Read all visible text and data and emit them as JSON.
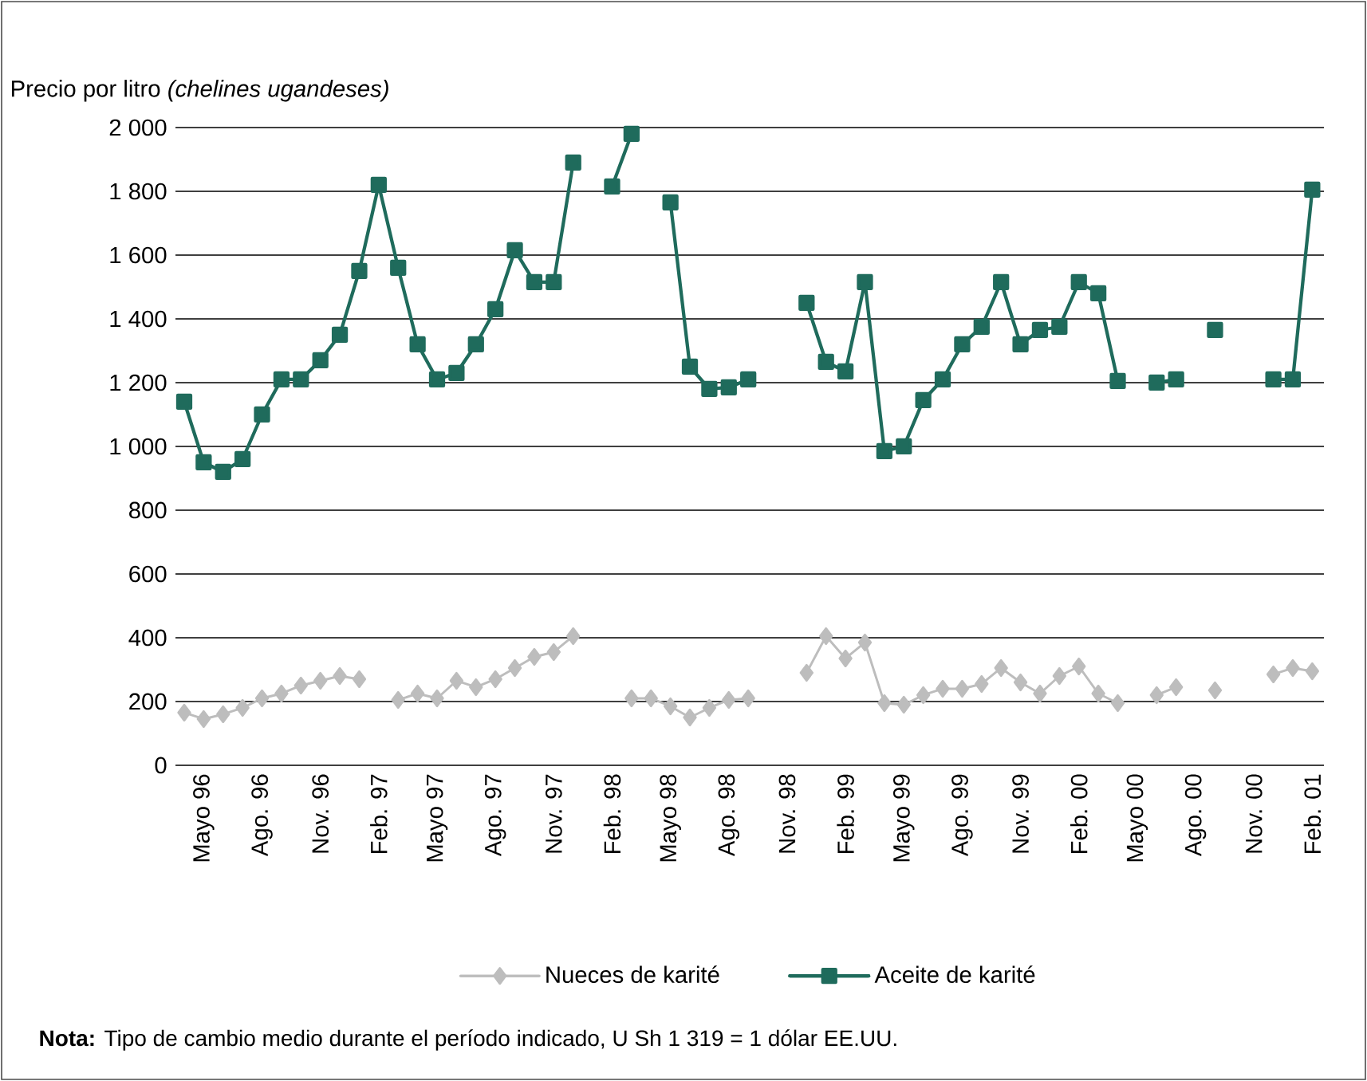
{
  "chart_data": {
    "type": "line",
    "ylabel": "Precio por litro *(chelines ugandeses)*",
    "categories": [
      null,
      "Mayo 96",
      null,
      null,
      "Ago. 96",
      null,
      null,
      "Nov. 96",
      null,
      null,
      "Feb. 97",
      null,
      null,
      "Mayo 97",
      null,
      null,
      "Ago. 97",
      null,
      null,
      "Nov. 97",
      null,
      null,
      "Feb. 98",
      null,
      null,
      "Mayo 98",
      null,
      null,
      "Ago. 98",
      null,
      null,
      "Nov. 98",
      null,
      null,
      "Feb. 99",
      null,
      null,
      "Mayo 99",
      null,
      null,
      "Ago. 99",
      null,
      null,
      "Nov. 99",
      null,
      null,
      "Feb. 00",
      null,
      null,
      "Mayo 00",
      null,
      null,
      "Ago. 00",
      null,
      null,
      "Nov. 00",
      null,
      null,
      "Feb. 01"
    ],
    "series": [
      {
        "name": "Nueces de karité",
        "color": "#bdbdbd",
        "marker": "diamond",
        "values": [
          165,
          145,
          160,
          180,
          210,
          225,
          250,
          265,
          280,
          270,
          null,
          205,
          225,
          210,
          265,
          245,
          270,
          305,
          340,
          355,
          405,
          null,
          null,
          210,
          210,
          185,
          150,
          180,
          205,
          210,
          null,
          null,
          290,
          405,
          335,
          385,
          195,
          190,
          220,
          240,
          240,
          255,
          305,
          260,
          225,
          280,
          310,
          225,
          195,
          null,
          220,
          245,
          null,
          235,
          null,
          null,
          285,
          305,
          295
        ]
      },
      {
        "name": "Aceite de karité",
        "color": "#1f6b5c",
        "marker": "square",
        "values": [
          1140,
          950,
          920,
          960,
          1100,
          1210,
          1210,
          1270,
          1350,
          1550,
          1820,
          1560,
          1320,
          1210,
          1230,
          1320,
          1430,
          1615,
          1515,
          1515,
          1890,
          null,
          1815,
          1980,
          null,
          1765,
          1250,
          1180,
          1185,
          1210,
          null,
          null,
          1450,
          1265,
          1235,
          1515,
          985,
          1000,
          1145,
          1210,
          1320,
          1375,
          1515,
          1320,
          1365,
          1375,
          1515,
          1480,
          1205,
          null,
          1200,
          1210,
          null,
          1365,
          null,
          null,
          1210,
          1210,
          1805
        ]
      }
    ],
    "ylim": [
      0,
      2000
    ],
    "yticks": [
      0,
      200,
      400,
      600,
      800,
      {
        "value": 1000,
        "label": "1 000"
      },
      {
        "value": 1200,
        "label": "1 200"
      },
      {
        "value": 1400,
        "label": "1 400"
      },
      {
        "value": 1600,
        "label": "1 600"
      },
      {
        "value": 1800,
        "label": "1 800"
      },
      {
        "value": 2000,
        "label": "2 000"
      }
    ],
    "grid": "y",
    "legend": "bottom",
    "line_style": "solid",
    "annotations": [
      "**Nota:** Tipo de cambio medio durante el período indicado, U Sh 1 319 = 1 dólar EE.UU."
    ]
  }
}
